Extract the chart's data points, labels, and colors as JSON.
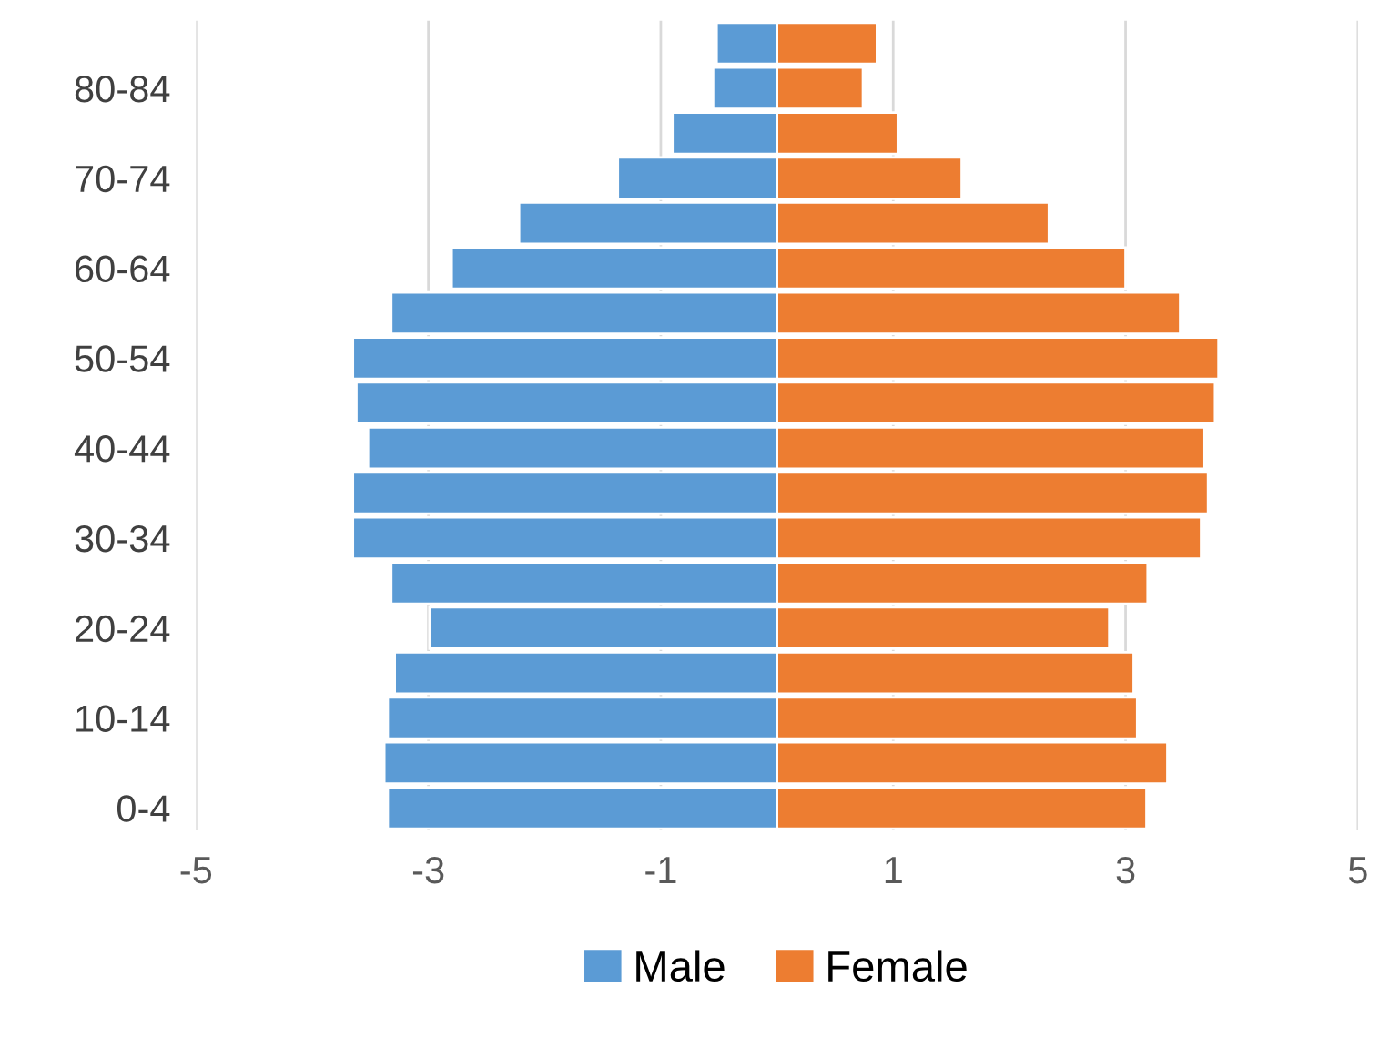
{
  "chart_data": {
    "type": "bar",
    "orientation": "horizontal",
    "stacked": true,
    "categories": [
      null,
      "80-84",
      null,
      "70-74",
      null,
      "60-64",
      null,
      "50-54",
      null,
      "40-44",
      null,
      "30-34",
      null,
      "20-24",
      null,
      "10-14",
      null,
      "0-4"
    ],
    "series": [
      {
        "name": "Male",
        "color": "#5b9bd5",
        "values": [
          -0.52,
          -0.55,
          -0.9,
          -1.37,
          -2.22,
          -2.8,
          -3.32,
          -3.65,
          -3.62,
          -3.52,
          -3.65,
          -3.65,
          -3.32,
          -2.99,
          -3.29,
          -3.35,
          -3.38,
          -3.35
        ]
      },
      {
        "name": "Female",
        "color": "#ed7d31",
        "values": [
          0.86,
          0.74,
          1.04,
          1.59,
          2.34,
          3.0,
          3.47,
          3.8,
          3.77,
          3.68,
          3.71,
          3.65,
          3.19,
          2.86,
          3.07,
          3.1,
          3.36,
          3.18
        ]
      }
    ],
    "xlim": [
      -5,
      5
    ],
    "xticks": [
      -5,
      -3,
      -1,
      1,
      3,
      5
    ],
    "grid": "x",
    "legend": "bottom"
  }
}
